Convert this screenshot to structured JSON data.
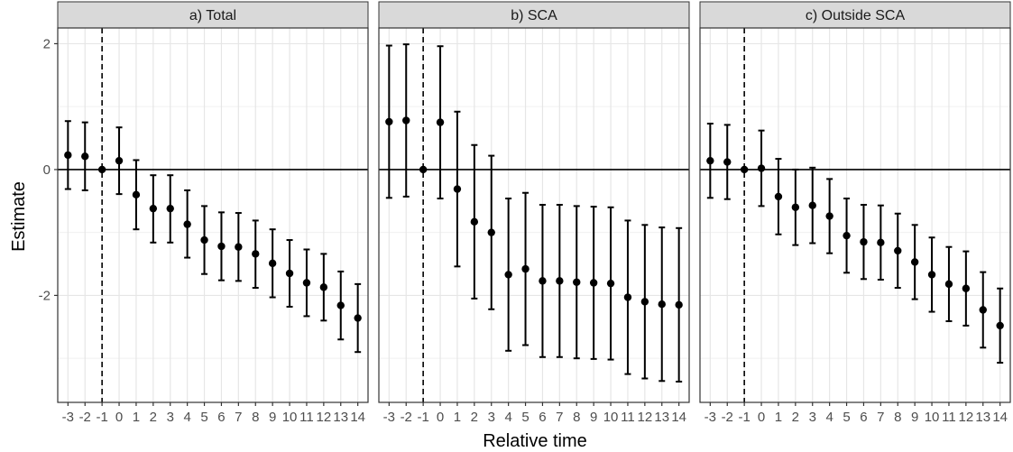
{
  "chart_data": {
    "type": "scatter",
    "xlabel": "Relative time",
    "ylabel": "Estimate",
    "x_ticks": [
      "-3",
      "-2",
      "-1",
      "0",
      "1",
      "2",
      "3",
      "4",
      "5",
      "6",
      "7",
      "8",
      "9",
      "10",
      "11",
      "12",
      "13",
      "14"
    ],
    "y_ticks": [
      "-2",
      "0",
      "2"
    ],
    "ylim": [
      -3.7,
      2.25
    ],
    "xlim": [
      -3.6,
      14.6
    ],
    "reference_vline_x": -1,
    "reference_hline_y": 0,
    "grid": true,
    "panels": [
      {
        "title": "a) Total",
        "x": [
          -3,
          -2,
          -1,
          0,
          1,
          2,
          3,
          4,
          5,
          6,
          7,
          8,
          9,
          10,
          11,
          12,
          13,
          14
        ],
        "estimate": [
          0.23,
          0.21,
          0.0,
          0.14,
          -0.4,
          -0.62,
          -0.62,
          -0.87,
          -1.12,
          -1.22,
          -1.23,
          -1.34,
          -1.49,
          -1.65,
          -1.8,
          -1.87,
          -2.16,
          -2.36
        ],
        "lower": [
          -0.31,
          -0.33,
          0.0,
          -0.39,
          -0.95,
          -1.16,
          -1.16,
          -1.4,
          -1.66,
          -1.76,
          -1.77,
          -1.88,
          -2.03,
          -2.18,
          -2.33,
          -2.4,
          -2.7,
          -2.9
        ],
        "upper": [
          0.77,
          0.75,
          0.0,
          0.67,
          0.15,
          -0.09,
          -0.09,
          -0.33,
          -0.58,
          -0.68,
          -0.69,
          -0.81,
          -0.95,
          -1.12,
          -1.27,
          -1.34,
          -1.62,
          -1.82
        ]
      },
      {
        "title": "b) SCA",
        "x": [
          -3,
          -2,
          -1,
          0,
          1,
          2,
          3,
          4,
          5,
          6,
          7,
          8,
          9,
          10,
          11,
          12,
          13,
          14
        ],
        "estimate": [
          0.76,
          0.78,
          0.0,
          0.75,
          -0.31,
          -0.83,
          -1.0,
          -1.67,
          -1.58,
          -1.77,
          -1.77,
          -1.79,
          -1.8,
          -1.81,
          -2.03,
          -2.1,
          -2.14,
          -2.15
        ],
        "lower": [
          -0.45,
          -0.43,
          0.0,
          -0.46,
          -1.54,
          -2.05,
          -2.22,
          -2.88,
          -2.79,
          -2.98,
          -2.98,
          -3.0,
          -3.01,
          -3.02,
          -3.25,
          -3.32,
          -3.36,
          -3.37
        ],
        "upper": [
          1.97,
          1.99,
          0.0,
          1.96,
          0.92,
          0.39,
          0.22,
          -0.46,
          -0.37,
          -0.56,
          -0.56,
          -0.58,
          -0.59,
          -0.6,
          -0.81,
          -0.88,
          -0.92,
          -0.93
        ]
      },
      {
        "title": "c) Outside SCA",
        "x": [
          -3,
          -2,
          -1,
          0,
          1,
          2,
          3,
          4,
          5,
          6,
          7,
          8,
          9,
          10,
          11,
          12,
          13,
          14
        ],
        "estimate": [
          0.14,
          0.12,
          0.0,
          0.02,
          -0.43,
          -0.6,
          -0.57,
          -0.74,
          -1.05,
          -1.15,
          -1.16,
          -1.29,
          -1.47,
          -1.67,
          -1.82,
          -1.89,
          -2.23,
          -2.48
        ],
        "lower": [
          -0.45,
          -0.47,
          0.0,
          -0.58,
          -1.03,
          -1.2,
          -1.17,
          -1.33,
          -1.64,
          -1.74,
          -1.75,
          -1.88,
          -2.06,
          -2.26,
          -2.41,
          -2.48,
          -2.83,
          -3.07
        ],
        "upper": [
          0.73,
          0.71,
          0.0,
          0.62,
          0.17,
          0.0,
          0.03,
          -0.15,
          -0.46,
          -0.56,
          -0.57,
          -0.7,
          -0.88,
          -1.08,
          -1.23,
          -1.3,
          -1.63,
          -1.89
        ]
      }
    ]
  }
}
